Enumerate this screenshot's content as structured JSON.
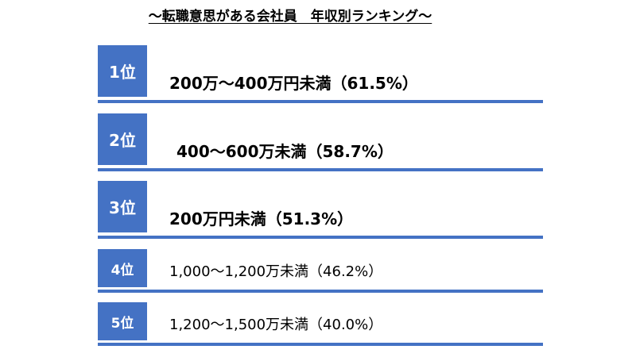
{
  "title": "～転職意思がある会社員　年収別ランキング～",
  "ranking": [
    {
      "rank": "1位",
      "label": "200万～400万円未満（61.5%）"
    },
    {
      "rank": "2位",
      "label": "400～600万未満（58.7%）"
    },
    {
      "rank": "3位",
      "label": "200万円未満（51.3%）"
    },
    {
      "rank": "4位",
      "label": "1,000～1,200万未満（46.2%）"
    },
    {
      "rank": "5位",
      "label": "1,200～1,500万未満（40.0%）"
    }
  ]
}
